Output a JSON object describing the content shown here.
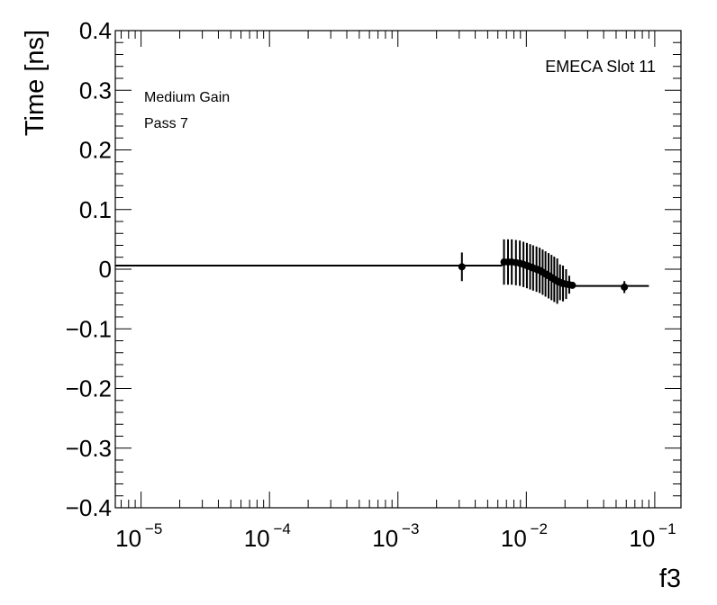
{
  "chart_data": {
    "type": "scatter",
    "x_scale": "log",
    "xlabel": "f3",
    "ylabel": "Time [ns]",
    "xlim": [
      6.3e-06,
      0.16
    ],
    "ylim": [
      -0.4,
      0.4
    ],
    "x_ticks": [
      {
        "value": 1e-05,
        "label": "10",
        "exp": "−5"
      },
      {
        "value": 0.0001,
        "label": "10",
        "exp": "−4"
      },
      {
        "value": 0.001,
        "label": "10",
        "exp": "−3"
      },
      {
        "value": 0.01,
        "label": "10",
        "exp": "−2"
      },
      {
        "value": 0.1,
        "label": "10",
        "exp": "−1"
      }
    ],
    "y_ticks": [
      {
        "value": 0.4,
        "label": "0.4"
      },
      {
        "value": 0.3,
        "label": "0.3"
      },
      {
        "value": 0.2,
        "label": "0.2"
      },
      {
        "value": 0.1,
        "label": "0.1"
      },
      {
        "value": 0,
        "label": "0"
      },
      {
        "value": -0.1,
        "label": "−0.1"
      },
      {
        "value": -0.2,
        "label": "−0.2"
      },
      {
        "value": -0.3,
        "label": "−0.3"
      },
      {
        "value": -0.4,
        "label": "−0.4"
      }
    ],
    "annotations": {
      "top_right": "EMECA Slot 11",
      "line1": "Medium Gain",
      "line2": "Pass 7"
    },
    "points": [
      {
        "x": 0.00315,
        "y": 0.004,
        "err": 0.024
      },
      {
        "x": 0.0067,
        "y": 0.012,
        "err": 0.038
      },
      {
        "x": 0.0072,
        "y": 0.012,
        "err": 0.038
      },
      {
        "x": 0.0077,
        "y": 0.012,
        "err": 0.038
      },
      {
        "x": 0.0083,
        "y": 0.011,
        "err": 0.038
      },
      {
        "x": 0.0089,
        "y": 0.01,
        "err": 0.038
      },
      {
        "x": 0.0095,
        "y": 0.008,
        "err": 0.038
      },
      {
        "x": 0.0101,
        "y": 0.006,
        "err": 0.038
      },
      {
        "x": 0.0107,
        "y": 0.004,
        "err": 0.038
      },
      {
        "x": 0.0113,
        "y": 0.002,
        "err": 0.038
      },
      {
        "x": 0.012,
        "y": 0.0,
        "err": 0.038
      },
      {
        "x": 0.0127,
        "y": -0.002,
        "err": 0.038
      },
      {
        "x": 0.0134,
        "y": -0.005,
        "err": 0.038
      },
      {
        "x": 0.0141,
        "y": -0.008,
        "err": 0.038
      },
      {
        "x": 0.0149,
        "y": -0.011,
        "err": 0.038
      },
      {
        "x": 0.0157,
        "y": -0.014,
        "err": 0.038
      },
      {
        "x": 0.0165,
        "y": -0.017,
        "err": 0.038
      },
      {
        "x": 0.0174,
        "y": -0.02,
        "err": 0.038
      },
      {
        "x": 0.0183,
        "y": -0.022,
        "err": 0.03
      },
      {
        "x": 0.0193,
        "y": -0.024,
        "err": 0.03
      },
      {
        "x": 0.0204,
        "y": -0.025,
        "err": 0.025
      },
      {
        "x": 0.0216,
        "y": -0.026,
        "err": 0.015
      },
      {
        "x": 0.0228,
        "y": -0.027,
        "err": 0.005
      },
      {
        "x": 0.058,
        "y": -0.03,
        "err": 0.01
      }
    ],
    "fit_line": [
      {
        "x": 6.3e-06,
        "y": 0.006
      },
      {
        "x": 0.0064,
        "y": 0.006
      },
      {
        "x": 0.0067,
        "y": 0.012
      },
      {
        "x": 0.0083,
        "y": 0.011
      },
      {
        "x": 0.0101,
        "y": 0.006
      },
      {
        "x": 0.012,
        "y": 0.0
      },
      {
        "x": 0.0141,
        "y": -0.008
      },
      {
        "x": 0.0165,
        "y": -0.017
      },
      {
        "x": 0.0193,
        "y": -0.024
      },
      {
        "x": 0.0228,
        "y": -0.028
      },
      {
        "x": 0.09,
        "y": -0.028
      }
    ]
  }
}
